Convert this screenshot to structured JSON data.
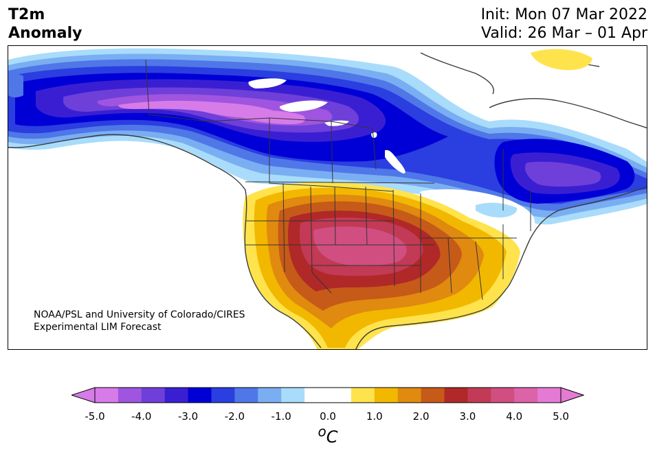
{
  "title": {
    "line1": "T2m",
    "line2": "Anomaly"
  },
  "dates": {
    "init": "Init: Mon 07 Mar 2022",
    "valid": "Valid: 26 Mar – 01 Apr"
  },
  "credit": {
    "line1": "NOAA/PSL and University of Colorado/CIRES",
    "line2": "Experimental LIM Forecast"
  },
  "colorbar": {
    "ticks": [
      "-5.0",
      "-4.0",
      "-3.0",
      "-2.0",
      "-1.0",
      "0.0",
      "1.0",
      "2.0",
      "3.0",
      "4.0",
      "5.0"
    ],
    "unit_sup": "o",
    "unit_main": "C",
    "colors": [
      "#d77be8",
      "#9f55df",
      "#6f3fda",
      "#3a1fd2",
      "#0000d6",
      "#2b3ee0",
      "#4f77e8",
      "#7aaef2",
      "#a9dcfb",
      "#ffffff",
      "#ffffff",
      "#ffe34d",
      "#f2b800",
      "#e08a10",
      "#c65a18",
      "#b02828",
      "#c23a55",
      "#d04f80",
      "#dc63a8",
      "#e57ad4"
    ]
  },
  "map": {
    "colors": {
      "strong_cold": "#d77be8",
      "violet": "#9f55df",
      "purple": "#6f3fda",
      "indigo": "#3a1fd2",
      "blue": "#0000d6",
      "royal": "#2b3ee0",
      "mid_blue": "#4f77e8",
      "light_blue": "#7aaef2",
      "pale_blue": "#a9dcfb",
      "yellow": "#ffe34d",
      "gold": "#f2b800",
      "orange": "#e08a10",
      "burnt": "#c65a18",
      "red": "#b02828",
      "crimson": "#c23a55",
      "pink": "#d04f80"
    }
  }
}
